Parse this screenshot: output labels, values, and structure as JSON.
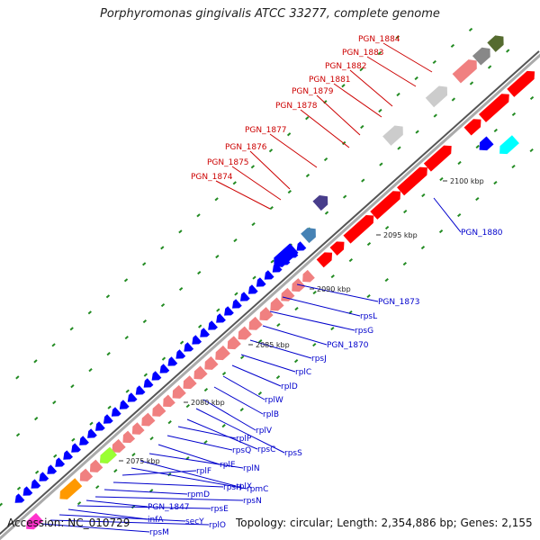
{
  "title": "Porphyromonas gingivalis ATCC 33277, complete genome",
  "footer": {
    "accession": "Accession: NC_010729",
    "topology": "Topology: circular; Length: 2,354,886 bp; Genes: 2,155"
  },
  "colors": {
    "backbone": "#888888",
    "red_gene": "#ff0000",
    "blue_gene": "#0000ff",
    "pink_gene": "#f08080",
    "label_red": "#cc0000",
    "label_blue": "#0000cc",
    "tick_green": "#228B22"
  },
  "scale_labels": [
    {
      "text": "2075 kbp",
      "kbp": 2075
    },
    {
      "text": "2080 kbp",
      "kbp": 2080
    },
    {
      "text": "2085 kbp",
      "kbp": 2085
    },
    {
      "text": "2090 kbp",
      "kbp": 2090
    },
    {
      "text": "2095 kbp",
      "kbp": 2095
    },
    {
      "text": "2100 kbp",
      "kbp": 2100
    }
  ],
  "gene_labels_top": [
    "PGN_1884",
    "PGN_1883",
    "PGN_1882",
    "PGN_1881",
    "PGN_1879",
    "PGN_1878",
    "PGN_1877",
    "PGN_1876",
    "PGN_1875",
    "PGN_1874"
  ],
  "gene_labels_side": [
    "PGN_1880",
    "PGN_1873",
    "rpsL",
    "rpsG",
    "PGN_1870",
    "rpsJ",
    "rplC",
    "rplD",
    "rplW",
    "rplB",
    "rplV",
    "rpsS",
    "rpsC",
    "rplP",
    "rpsQ",
    "rplE",
    "rplN",
    "rplX",
    "rpmC",
    "rplF",
    "rpsH",
    "rpmD",
    "rpsN",
    "PGN_1847",
    "rpsE",
    "infA",
    "secY",
    "rplO",
    "rpsM"
  ]
}
